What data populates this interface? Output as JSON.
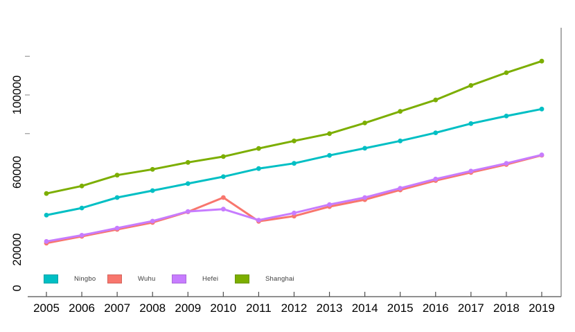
{
  "chart_data": {
    "type": "line",
    "title": "",
    "xlabel": "",
    "ylabel": "",
    "x": [
      2005,
      2006,
      2007,
      2008,
      2009,
      2010,
      2011,
      2012,
      2013,
      2014,
      2015,
      2016,
      2017,
      2018,
      2019
    ],
    "series": [
      {
        "name": "Ningbo",
        "color": "#00BFC4",
        "values": [
          37800,
          41500,
          46900,
          50500,
          54100,
          57700,
          61900,
          64600,
          68700,
          72400,
          76200,
          80400,
          85200,
          89100,
          92700
        ]
      },
      {
        "name": "Wuhu",
        "color": "#F8766D",
        "values": [
          23300,
          26800,
          30400,
          34000,
          39500,
          46900,
          34600,
          37300,
          42200,
          45800,
          50800,
          55700,
          59900,
          64000,
          68800
        ]
      },
      {
        "name": "Hefei",
        "color": "#C77CFF",
        "values": [
          24200,
          27400,
          31100,
          34700,
          39700,
          40900,
          35200,
          38900,
          43300,
          46900,
          51700,
          56500,
          60600,
          64600,
          69000
        ]
      },
      {
        "name": "Shanghai",
        "color": "#7CAE00",
        "values": [
          49000,
          52900,
          58500,
          61500,
          65100,
          68100,
          72300,
          76200,
          80000,
          85500,
          91500,
          97400,
          104900,
          111500,
          117500
        ]
      }
    ],
    "y_axis_label_values": [
      0,
      20000,
      60000,
      100000
    ],
    "y_axis_tick_values": [
      80000,
      100000,
      120000
    ],
    "x_tick_labels": [
      "2005",
      "2006",
      "2007",
      "2008",
      "2009",
      "2010",
      "2011",
      "2012",
      "2013",
      "2014",
      "2015",
      "2016",
      "2017",
      "2018",
      "2019"
    ],
    "ylim": [
      0,
      134800
    ],
    "grid": false,
    "legend_position": "bottom",
    "axis_color": "#4d4d4d",
    "frame_color": "#808080",
    "minor_tick_color": "#999999",
    "text_color": "#000000"
  },
  "legend": {
    "items": [
      {
        "label": "Ningbo",
        "color": "#00BFC4"
      },
      {
        "label": "Wuhu",
        "color": "#F8766D"
      },
      {
        "label": "Hefei",
        "color": "#C77CFF"
      },
      {
        "label": "Shanghai",
        "color": "#7CAE00"
      }
    ]
  }
}
